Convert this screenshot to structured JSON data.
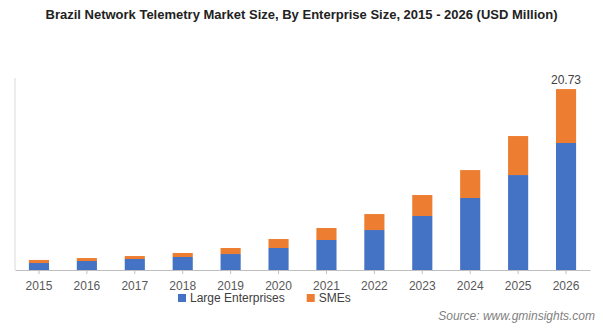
{
  "chart_data": {
    "type": "bar",
    "stacked": true,
    "title": "Brazil Network Telemetry Market Size, By  Enterprise  Size, 2015 - 2026 (USD Million)",
    "categories": [
      "2015",
      "2016",
      "2017",
      "2018",
      "2019",
      "2020",
      "2021",
      "2022",
      "2023",
      "2024",
      "2025",
      "2026"
    ],
    "series": [
      {
        "name": "Large Enterprises",
        "color": "#4472c4",
        "values": [
          0.8,
          1.03,
          1.26,
          1.49,
          1.83,
          2.52,
          3.44,
          4.58,
          6.19,
          8.25,
          10.88,
          14.55
        ]
      },
      {
        "name": "SMEs",
        "color": "#ed7d31",
        "values": [
          0.35,
          0.34,
          0.34,
          0.46,
          0.69,
          1.03,
          1.37,
          1.83,
          2.4,
          3.2,
          4.47,
          6.18
        ]
      }
    ],
    "ylim": [
      0,
      22
    ],
    "tick_labels": "x",
    "legend": "bottom",
    "annotations": [
      {
        "x": "2026",
        "y": 20.73,
        "text": "20.73"
      }
    ],
    "source": "Source: www.gminsights.com"
  }
}
